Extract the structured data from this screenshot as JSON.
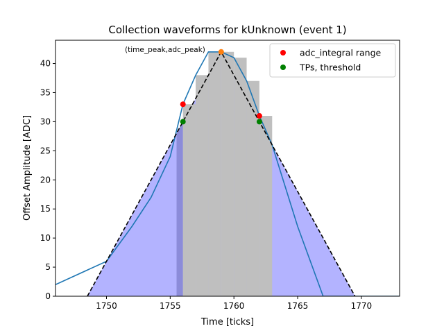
{
  "chart_data": {
    "type": "line",
    "title": "Collection waveforms for kUnknown (event 1)",
    "xlabel": "Time [ticks]",
    "ylabel": "Offset Amplitude [ADC]",
    "xlim": [
      1746,
      1773
    ],
    "ylim": [
      0,
      44
    ],
    "xticks": [
      1750,
      1755,
      1760,
      1765,
      1770
    ],
    "yticks": [
      0,
      5,
      10,
      15,
      20,
      25,
      30,
      35,
      40
    ],
    "grid": false,
    "legend_position": "top-right",
    "legend": [
      {
        "label": "adc_integral range",
        "color": "#ff0000"
      },
      {
        "label": "TPs, threshold",
        "color": "#008000"
      }
    ],
    "annotation": "(time_peak,adc_peak)",
    "waveform": {
      "color": "#1f77b4",
      "x": [
        1746,
        1750,
        1752,
        1753.5,
        1755,
        1756,
        1757,
        1758,
        1759,
        1760,
        1761,
        1762,
        1763,
        1764,
        1765,
        1766,
        1767,
        1768,
        1769,
        1770,
        1771,
        1772,
        1773
      ],
      "y": [
        2,
        6,
        12,
        17,
        24,
        33,
        38,
        42,
        42,
        41,
        37,
        31,
        26,
        19,
        12,
        6,
        0,
        0,
        0,
        0,
        0,
        0,
        0
      ]
    },
    "triangle": {
      "color": "#000000",
      "style": "dashed",
      "x": [
        1748.5,
        1759,
        1769.5
      ],
      "y": [
        0,
        42,
        0
      ]
    },
    "fill_triangle": {
      "color": "#b3b3ff",
      "x": [
        1748.5,
        1759,
        1769.5
      ],
      "y": [
        0,
        42,
        0
      ]
    },
    "bars": {
      "color": "#bfbfbf",
      "x": [
        1756,
        1757,
        1758,
        1759,
        1760,
        1761,
        1762
      ],
      "values": [
        33,
        38,
        42,
        42,
        41,
        37,
        31
      ],
      "width": 1
    },
    "threshold_edges": {
      "color": "#8c8cd9",
      "ranges": [
        [
          1755.5,
          1756
        ],
        [
          1762,
          1762.5
        ]
      ]
    },
    "adc_integral_points": {
      "color": "#ff0000",
      "x": [
        1756,
        1762
      ],
      "y": [
        33,
        31
      ]
    },
    "tp_threshold_points": {
      "color": "#008000",
      "x": [
        1756,
        1762
      ],
      "y": [
        30,
        30
      ]
    },
    "peak_point": {
      "color": "#ff7f0e",
      "x": 1759,
      "y": 42
    }
  }
}
